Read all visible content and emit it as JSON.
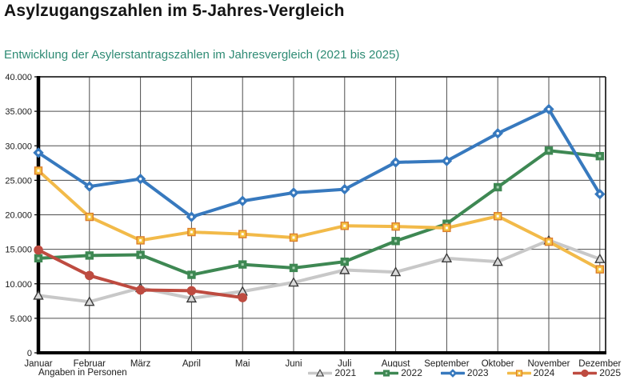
{
  "header": {
    "title": "Asylzugangszahlen im 5-Jahres-Vergleich",
    "subtitle": "Entwicklung der Asylerstantragszahlen im Jahresvergleich (2021 bis 2025)"
  },
  "footer": {
    "note": "Angaben in Personen"
  },
  "colors": {
    "title_text": "#141414",
    "subtitle_text": "#2e8b74",
    "grid_line": "#4d4d4d",
    "axis_line": "#000000",
    "plot_border": "#262626",
    "label_text": "#1a1a1a"
  },
  "chart_data": {
    "type": "line",
    "title": "Entwicklung der Asylerstantragszahlen im Jahresvergleich (2021 bis 2025)",
    "xlabel": "",
    "ylabel": "",
    "unit_note": "Angaben in Personen",
    "grid": true,
    "legend_position": "bottom-right",
    "ylim": [
      0,
      40000
    ],
    "y_ticks": [
      {
        "value": 0,
        "label": "0"
      },
      {
        "value": 5000,
        "label": "5.000"
      },
      {
        "value": 10000,
        "label": "10.000"
      },
      {
        "value": 15000,
        "label": "15.000"
      },
      {
        "value": 20000,
        "label": "20.000"
      },
      {
        "value": 25000,
        "label": "25.000"
      },
      {
        "value": 30000,
        "label": "30.000"
      },
      {
        "value": 35000,
        "label": "35.000"
      },
      {
        "value": 40000,
        "label": "40.000"
      }
    ],
    "categories": [
      "Januar",
      "Februar",
      "März",
      "April",
      "Mai",
      "Juni",
      "Juli",
      "August",
      "September",
      "Oktober",
      "November",
      "Dezember"
    ],
    "series": [
      {
        "name": "2021",
        "marker": "triangle",
        "color": "#c8c8c8",
        "marker_fill": "#d9d9d9",
        "marker_stroke": "#3b3b3b",
        "values": [
          8300,
          7400,
          9400,
          7900,
          8900,
          10200,
          12000,
          11700,
          13700,
          13200,
          16300,
          13600
        ]
      },
      {
        "name": "2022",
        "marker": "square",
        "color": "#3e8853",
        "marker_fill": "#3e8853",
        "marker_stroke": "#3e8853",
        "center_dot": "#a9d3b4",
        "values": [
          13700,
          14100,
          14200,
          11300,
          12800,
          12300,
          13200,
          16200,
          18700,
          24000,
          29300,
          28500
        ]
      },
      {
        "name": "2023",
        "marker": "diamond",
        "color": "#3779be",
        "marker_fill": "#3779be",
        "marker_stroke": "#3779be",
        "center_dot": "#ffffff",
        "values": [
          29000,
          24100,
          25200,
          19700,
          22000,
          23200,
          23700,
          27600,
          27800,
          31800,
          35300,
          23000
        ]
      },
      {
        "name": "2024",
        "marker": "square",
        "color": "#f2ba49",
        "marker_fill": "#f5c242",
        "marker_stroke": "#dd7e2b",
        "center_dot": "#ffffff",
        "values": [
          26400,
          19700,
          16300,
          17500,
          17200,
          16700,
          18400,
          18300,
          18100,
          19800,
          16100,
          12100
        ]
      },
      {
        "name": "2025",
        "marker": "circle",
        "color": "#be4b40",
        "marker_fill": "#be4b40",
        "marker_stroke": "#be4b40",
        "values": [
          14900,
          11200,
          9100,
          9000,
          8000
        ]
      }
    ]
  }
}
